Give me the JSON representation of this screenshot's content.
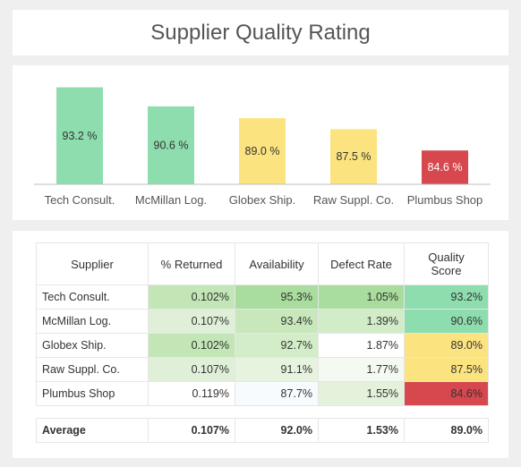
{
  "title": "Supplier Quality Rating",
  "colors": {
    "green": "#8dddae",
    "yellow": "#fbe37f",
    "red": "#d6484e",
    "axis": "#bfbfbf",
    "label": "#555555"
  },
  "chart_data": {
    "type": "bar",
    "categories": [
      "Tech Consult.",
      "McMillan Log.",
      "Globex Ship.",
      "Raw Suppl. Co.",
      "Plumbus Shop"
    ],
    "values": [
      93.2,
      90.6,
      89.0,
      87.5,
      84.6
    ],
    "data_labels": [
      "93.2 %",
      "90.6 %",
      "89.0 %",
      "87.5 %",
      "84.6 %"
    ],
    "bar_colors": [
      "#8dddae",
      "#8dddae",
      "#fbe37f",
      "#fbe37f",
      "#d6484e"
    ],
    "label_colors": [
      "#333333",
      "#333333",
      "#333333",
      "#333333",
      "#ffffff"
    ],
    "title": "",
    "xlabel": "",
    "ylabel": "",
    "ylim": [
      80,
      94
    ],
    "grid": false
  },
  "table": {
    "headers": {
      "supplier": "Supplier",
      "returned": "% Returned",
      "availability": "Availability",
      "defect": "Defect Rate",
      "quality_line1": "Quality",
      "quality_line2": "Score"
    },
    "rows": [
      {
        "supplier": "Tech Consult.",
        "returned": "0.102%",
        "availability": "95.3%",
        "defect": "1.05%",
        "quality": "93.2%",
        "colors": {
          "returned": "#c2e6b5",
          "availability": "#a9dd9d",
          "defect": "#a9dd9d",
          "quality": "#8dddae"
        }
      },
      {
        "supplier": "McMillan Log.",
        "returned": "0.107%",
        "availability": "93.4%",
        "defect": "1.39%",
        "quality": "90.6%",
        "colors": {
          "returned": "#e0f0d8",
          "availability": "#c8e8bc",
          "defect": "#d2ecc8",
          "quality": "#8dddae"
        }
      },
      {
        "supplier": "Globex Ship.",
        "returned": "0.102%",
        "availability": "92.7%",
        "defect": "1.87%",
        "quality": "89.0%",
        "colors": {
          "returned": "#c2e6b5",
          "availability": "#d4edc9",
          "defect": "#ffffff",
          "quality": "#fbe37f"
        }
      },
      {
        "supplier": "Raw Suppl. Co.",
        "returned": "0.107%",
        "availability": "91.1%",
        "defect": "1.77%",
        "quality": "87.5%",
        "colors": {
          "returned": "#e0f0d8",
          "availability": "#e6f3df",
          "defect": "#f4faf1",
          "quality": "#fbe37f"
        }
      },
      {
        "supplier": "Plumbus Shop",
        "returned": "0.119%",
        "availability": "87.7%",
        "defect": "1.55%",
        "quality": "84.6%",
        "colors": {
          "returned": "#ffffff",
          "availability": "#f7fbfe",
          "defect": "#e4f2dc",
          "quality": "#d6484e"
        }
      }
    ],
    "average": {
      "supplier": "Average",
      "returned": "0.107%",
      "availability": "92.0%",
      "defect": "1.53%",
      "quality": "89.0%"
    }
  }
}
